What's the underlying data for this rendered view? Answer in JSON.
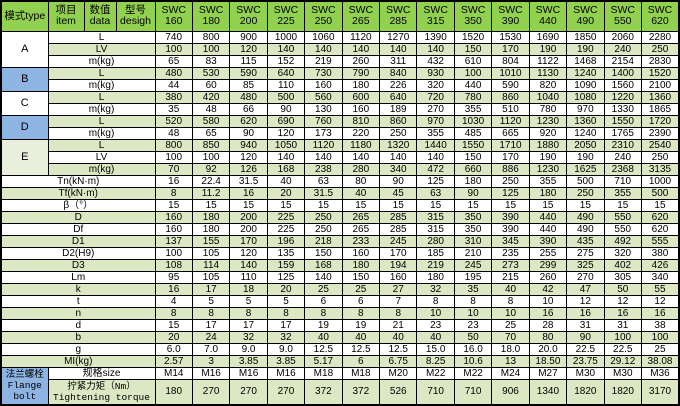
{
  "table": {
    "corner_label": "模式type",
    "item_header": [
      "项目",
      "item"
    ],
    "data_header": [
      "数值",
      "data"
    ],
    "design_header": [
      "型号",
      "desigh"
    ],
    "series_name": "SWC",
    "models": [
      "160",
      "180",
      "200",
      "225",
      "250",
      "265",
      "285",
      "315",
      "350",
      "390",
      "440",
      "490",
      "550",
      "620"
    ],
    "modes": [
      {
        "label": "A",
        "bg": "white",
        "rows": [
          {
            "label": "L",
            "values": [
              "740",
              "800",
              "900",
              "1000",
              "1060",
              "1120",
              "1270",
              "1390",
              "1520",
              "1530",
              "1690",
              "1850",
              "2060",
              "2280"
            ]
          },
          {
            "label": "LV",
            "values": [
              "100",
              "100",
              "120",
              "140",
              "140",
              "140",
              "140",
              "140",
              "150",
              "170",
              "190",
              "190",
              "240",
              "250"
            ]
          },
          {
            "label": "m(kg)",
            "values": [
              "65",
              "83",
              "115",
              "152",
              "219",
              "260",
              "311",
              "432",
              "610",
              "804",
              "1122",
              "1468",
              "2154",
              "2830"
            ]
          }
        ]
      },
      {
        "label": "B",
        "bg": "blue",
        "rows": [
          {
            "label": "L",
            "values": [
              "480",
              "530",
              "590",
              "640",
              "730",
              "790",
              "840",
              "930",
              "100",
              "1010",
              "1130",
              "1240",
              "1400",
              "1520"
            ]
          },
          {
            "label": "m(kg)",
            "values": [
              "44",
              "60",
              "85",
              "110",
              "160",
              "180",
              "226",
              "320",
              "440",
              "590",
              "820",
              "1090",
              "1560",
              "2100"
            ]
          }
        ]
      },
      {
        "label": "C",
        "bg": "white",
        "rows": [
          {
            "label": "L",
            "values": [
              "380",
              "420",
              "480",
              "500",
              "560",
              "600",
              "640",
              "720",
              "780",
              "860",
              "1040",
              "1080",
              "1220",
              "1360"
            ]
          },
          {
            "label": "m(kg)",
            "values": [
              "35",
              "48",
              "66",
              "90",
              "130",
              "160",
              "189",
              "270",
              "355",
              "510",
              "780",
              "970",
              "1330",
              "1865"
            ]
          }
        ]
      },
      {
        "label": "D",
        "bg": "blue",
        "rows": [
          {
            "label": "L",
            "values": [
              "520",
              "580",
              "620",
              "690",
              "760",
              "810",
              "860",
              "970",
              "1030",
              "1120",
              "1230",
              "1360",
              "1550",
              "1720"
            ]
          },
          {
            "label": "m(kg)",
            "values": [
              "48",
              "65",
              "90",
              "120",
              "173",
              "220",
              "250",
              "355",
              "485",
              "665",
              "920",
              "1240",
              "1765",
              "2390"
            ]
          }
        ]
      },
      {
        "label": "E",
        "bg": "pale",
        "rows": [
          {
            "label": "L",
            "values": [
              "800",
              "850",
              "940",
              "1050",
              "1120",
              "1180",
              "1320",
              "1440",
              "1550",
              "1710",
              "1880",
              "2050",
              "2310",
              "2540"
            ]
          },
          {
            "label": "LV",
            "values": [
              "100",
              "100",
              "120",
              "140",
              "140",
              "140",
              "140",
              "140",
              "150",
              "170",
              "190",
              "190",
              "240",
              "250"
            ]
          },
          {
            "label": "m(kg)",
            "values": [
              "70",
              "92",
              "126",
              "168",
              "238",
              "280",
              "340",
              "472",
              "660",
              "886",
              "1230",
              "1625",
              "2368",
              "3135"
            ]
          }
        ]
      }
    ],
    "params": [
      {
        "label": "Tn(kN·m)",
        "values": [
          "16",
          "22.4",
          "31.5",
          "40",
          "63",
          "80",
          "90",
          "125",
          "180",
          "250",
          "355",
          "500",
          "710",
          "1000"
        ]
      },
      {
        "label": "Tf(kN·m)",
        "values": [
          "8",
          "11.2",
          "16",
          "20",
          "31.5",
          "40",
          "45",
          "63",
          "90",
          "125",
          "180",
          "250",
          "355",
          "500"
        ]
      },
      {
        "label": "β（°）",
        "values": [
          "15",
          "15",
          "15",
          "15",
          "15",
          "15",
          "15",
          "15",
          "15",
          "15",
          "15",
          "15",
          "15",
          "15"
        ]
      },
      {
        "label": "D",
        "values": [
          "160",
          "180",
          "200",
          "225",
          "250",
          "265",
          "285",
          "315",
          "350",
          "390",
          "440",
          "490",
          "550",
          "620"
        ]
      },
      {
        "label": "Df",
        "values": [
          "160",
          "180",
          "200",
          "225",
          "250",
          "265",
          "285",
          "315",
          "350",
          "390",
          "440",
          "490",
          "550",
          "620"
        ]
      },
      {
        "label": "D1",
        "values": [
          "137",
          "155",
          "170",
          "196",
          "218",
          "233",
          "245",
          "280",
          "310",
          "345",
          "390",
          "435",
          "492",
          "555"
        ]
      },
      {
        "label": "D2(H9)",
        "values": [
          "100",
          "105",
          "120",
          "135",
          "150",
          "160",
          "170",
          "185",
          "210",
          "235",
          "255",
          "275",
          "320",
          "380"
        ]
      },
      {
        "label": "D3",
        "values": [
          "108",
          "114",
          "140",
          "159",
          "168",
          "180",
          "194",
          "219",
          "245",
          "273",
          "299",
          "325",
          "402",
          "426"
        ]
      },
      {
        "label": "Lm",
        "values": [
          "95",
          "105",
          "110",
          "125",
          "140",
          "150",
          "160",
          "180",
          "195",
          "215",
          "260",
          "270",
          "305",
          "340"
        ]
      },
      {
        "label": "k",
        "values": [
          "16",
          "17",
          "18",
          "20",
          "25",
          "25",
          "27",
          "32",
          "35",
          "40",
          "42",
          "47",
          "50",
          "55"
        ]
      },
      {
        "label": "t",
        "values": [
          "4",
          "5",
          "5",
          "5",
          "6",
          "6",
          "7",
          "8",
          "8",
          "8",
          "10",
          "12",
          "12",
          "12"
        ]
      },
      {
        "label": "n",
        "values": [
          "8",
          "8",
          "8",
          "8",
          "8",
          "8",
          "8",
          "10",
          "10",
          "10",
          "16",
          "16",
          "16",
          "16"
        ]
      },
      {
        "label": "d",
        "values": [
          "15",
          "17",
          "17",
          "17",
          "19",
          "19",
          "21",
          "23",
          "23",
          "25",
          "28",
          "31",
          "31",
          "38"
        ]
      },
      {
        "label": "b",
        "values": [
          "20",
          "24",
          "32",
          "32",
          "40",
          "40",
          "40",
          "40",
          "50",
          "70",
          "80",
          "90",
          "100",
          "100"
        ]
      },
      {
        "label": "g",
        "values": [
          "6.0",
          "7.0",
          "9.0",
          "9.0",
          "12.5",
          "12.5",
          "12.5",
          "15.0",
          "16.0",
          "18.0",
          "20.0",
          "22.5",
          "22.5",
          "25"
        ]
      },
      {
        "label": "MI(kg)",
        "values": [
          "2.57",
          "3",
          "3.85",
          "3.85",
          "5.17",
          "6",
          "6.75",
          "8.25",
          "10.6",
          "13",
          "18.50",
          "23.75",
          "29.12",
          "38.08"
        ]
      }
    ],
    "flange": {
      "label_cn": "法兰螺栓",
      "label_en": [
        "Flange",
        "bolt"
      ],
      "size_label": "规格size",
      "sizes": [
        "M14",
        "M16",
        "M16",
        "M16",
        "M18",
        "M18",
        "M20",
        "M22",
        "M22",
        "M24",
        "M27",
        "M30",
        "M30",
        "M36"
      ],
      "torque_label_cn": "拧紧力矩（Nm）",
      "torque_label_en": "Tightening torque",
      "torques": [
        "180",
        "270",
        "270",
        "270",
        "372",
        "372",
        "526",
        "710",
        "710",
        "906",
        "1340",
        "1820",
        "1820",
        "3170"
      ]
    },
    "colors": {
      "header_green": "#92D050",
      "stripe_green": "#DCE8C4",
      "mode_blue": "#8DB4E2",
      "pale_green": "#E9EFDC",
      "border": "#000000"
    }
  }
}
